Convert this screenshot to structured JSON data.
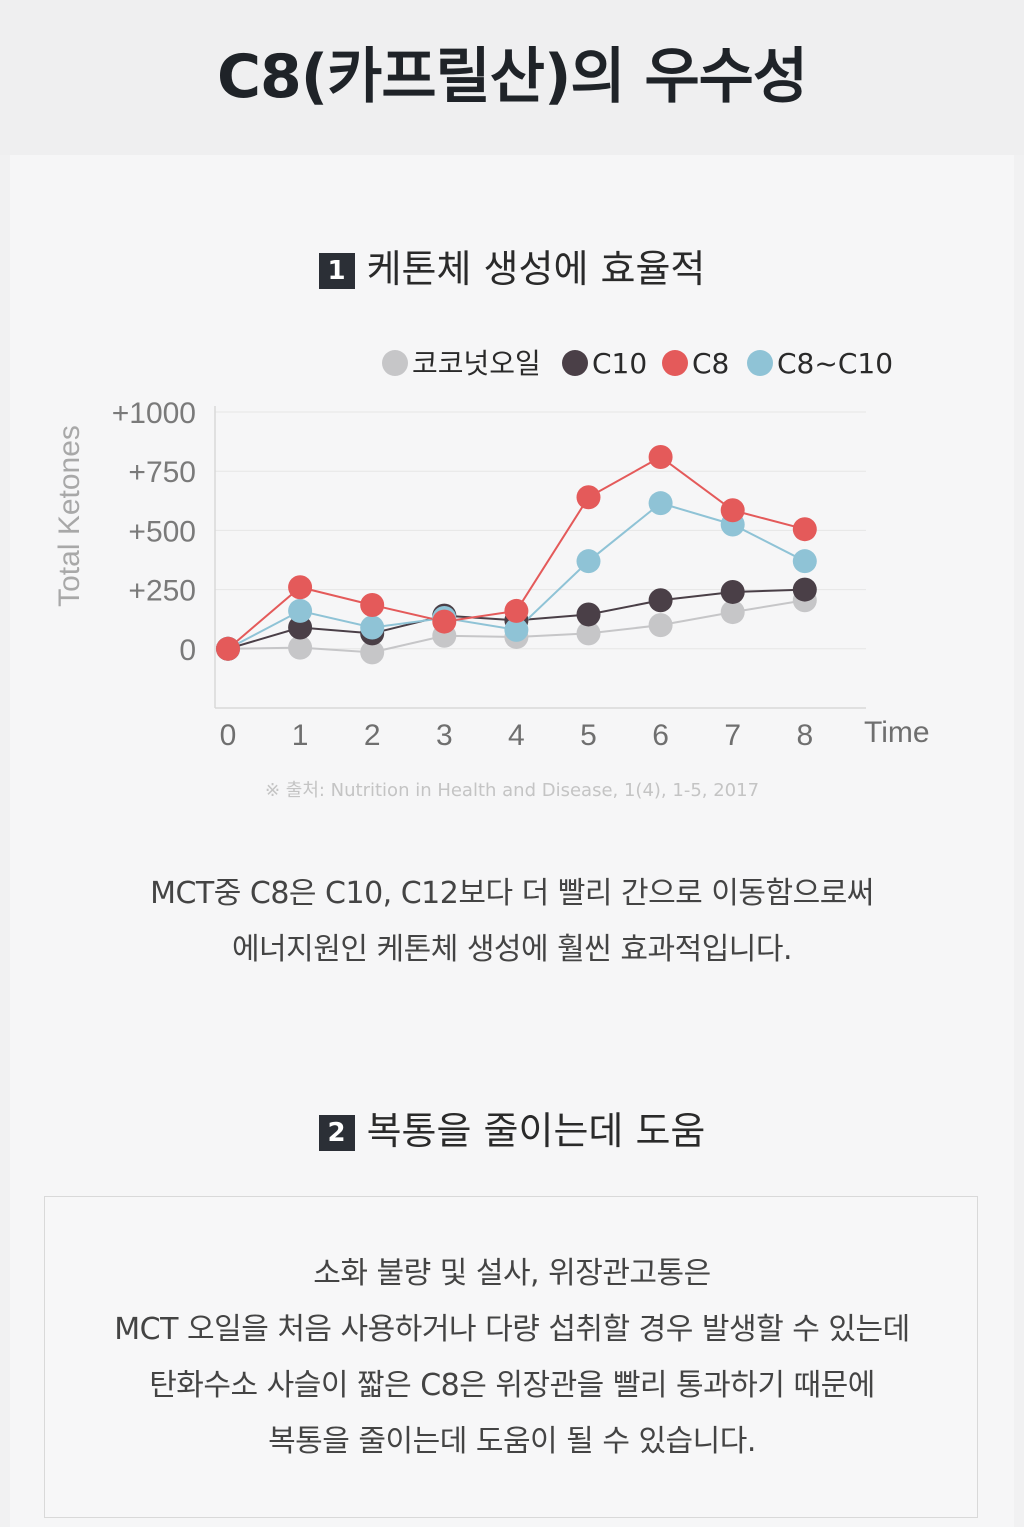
{
  "page": {
    "title": "C8(카프릴산)의 우수성"
  },
  "section1": {
    "number": "1",
    "heading": "케톤체 생성에 효율적",
    "source": "※ 출처: Nutrition in Health and Disease, 1(4), 1-5, 2017",
    "paragraph_lines": [
      "MCT중 C8은 C10, C12보다 더 빨리 간으로 이동함으로써",
      "에너지원인 케톤체 생성에 훨씬 효과적입니다."
    ]
  },
  "section2": {
    "number": "2",
    "heading": "복통을 줄이는데 도움",
    "paragraph_lines": [
      "소화 불량 및 설사, 위장관고통은",
      "MCT 오일을 처음 사용하거나 다량 섭취할 경우 발생할 수 있는데",
      "탄화수소 사슬이 짧은 C8은 위장관을 빨리 통과하기 때문에",
      "복통을 줄이는데 도움이 될 수 있습니다."
    ]
  },
  "chart_data": {
    "type": "line",
    "x": [
      0,
      1,
      2,
      3,
      4,
      5,
      6,
      7,
      8
    ],
    "xlabel": "Time",
    "ylabel": "Total Ketones",
    "yticks": [
      {
        "value": 0,
        "label": "0"
      },
      {
        "value": 250,
        "label": "+250"
      },
      {
        "value": 500,
        "label": "+500"
      },
      {
        "value": 750,
        "label": "+750"
      },
      {
        "value": 1000,
        "label": "+1000"
      }
    ],
    "ylim": [
      -250,
      1000
    ],
    "xlim": [
      0,
      8.9
    ],
    "grid": true,
    "legend_position": "top-right",
    "series": [
      {
        "name": "코코넛오일",
        "color": "#c6c6c8",
        "values": [
          0,
          5,
          -15,
          55,
          50,
          65,
          100,
          155,
          205
        ]
      },
      {
        "name": "C10",
        "color": "#4a3f47",
        "values": [
          0,
          90,
          65,
          140,
          120,
          145,
          205,
          240,
          250
        ]
      },
      {
        "name": "C8~C10",
        "color": "#8fc3d6",
        "values": [
          0,
          160,
          90,
          130,
          80,
          370,
          615,
          525,
          370
        ]
      },
      {
        "name": "C8",
        "color": "#e45a5a",
        "values": [
          0,
          260,
          185,
          115,
          160,
          640,
          810,
          585,
          505
        ]
      }
    ],
    "legend_order": [
      "코코넛오일",
      "C10",
      "C8",
      "C8~C10"
    ]
  }
}
